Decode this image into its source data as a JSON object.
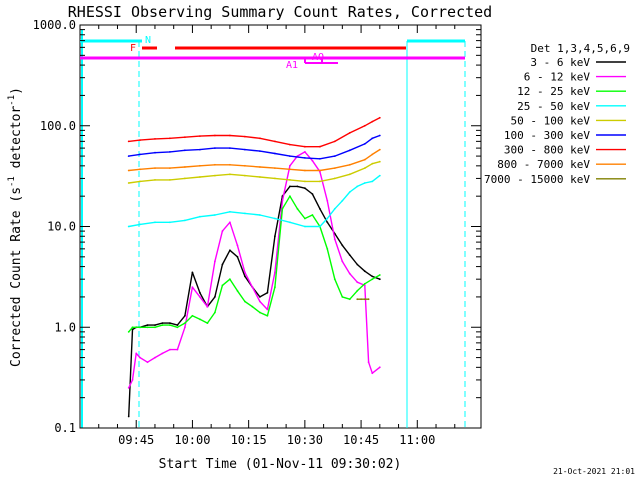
{
  "chart_data": {
    "type": "line",
    "title": "RHESSI Observing Summary Count Rates, Corrected",
    "xlabel": "Start Time (01-Nov-11 09:30:02)",
    "ylabel": "Corrected Count Rate (s⁻¹ detector⁻¹)",
    "ylabel_main": "Corrected Count Rate (s",
    "ylabel_sup1": "-1",
    "ylabel_mid": " detector",
    "ylabel_sup2": "-1",
    "ylabel_end": ")",
    "yscale": "log",
    "ylim": [
      0.1,
      1000
    ],
    "xlim_minutes": [
      0,
      107
    ],
    "x_ticks": [
      {
        "minute": 15,
        "label": "09:45"
      },
      {
        "minute": 30,
        "label": "10:00"
      },
      {
        "minute": 45,
        "label": "10:15"
      },
      {
        "minute": 60,
        "label": "10:30"
      },
      {
        "minute": 75,
        "label": "10:45"
      },
      {
        "minute": 90,
        "label": "11:00"
      }
    ],
    "y_ticks": [
      {
        "value": 0.1,
        "label": "0.1"
      },
      {
        "value": 1,
        "label": "1.0"
      },
      {
        "value": 10,
        "label": "10.0"
      },
      {
        "value": 100,
        "label": "100.0"
      },
      {
        "value": 1000,
        "label": "1000.0"
      }
    ],
    "legend_title": "Det 1,3,4,5,6,9",
    "legend_position": "right",
    "timestamp": "21-Oct-2021 21:01",
    "series": [
      {
        "name": "3 - 6 keV",
        "color": "#000000",
        "x": [
          13,
          14,
          15,
          16,
          18,
          20,
          22,
          24,
          26,
          28,
          30,
          32,
          34,
          36,
          38,
          40,
          42,
          44,
          46,
          48,
          50,
          52,
          54,
          56,
          58,
          60,
          62,
          64,
          66,
          68,
          70,
          72,
          74,
          76,
          78,
          80
        ],
        "y": [
          0.13,
          0.95,
          1.0,
          1.0,
          1.05,
          1.05,
          1.1,
          1.1,
          1.05,
          1.3,
          3.5,
          2.2,
          1.6,
          2.0,
          4.2,
          5.8,
          5.0,
          3.2,
          2.5,
          2.0,
          2.2,
          8.0,
          20,
          25,
          25,
          24,
          21,
          15,
          11,
          8.5,
          6.5,
          5.2,
          4.2,
          3.6,
          3.2,
          3.0
        ]
      },
      {
        "name": "6 - 12 keV",
        "color": "#ff00ff",
        "x": [
          13,
          14,
          15,
          16,
          18,
          20,
          22,
          24,
          26,
          28,
          30,
          32,
          34,
          36,
          38,
          40,
          42,
          44,
          46,
          48,
          50,
          52,
          54,
          56,
          58,
          60,
          62,
          64,
          66,
          68,
          70,
          72,
          74,
          76,
          77,
          78,
          80
        ],
        "y": [
          0.25,
          0.3,
          0.55,
          0.5,
          0.45,
          0.5,
          0.55,
          0.6,
          0.6,
          1.0,
          2.5,
          2.0,
          1.6,
          4.5,
          9.0,
          11.0,
          6.5,
          3.5,
          2.5,
          1.8,
          1.5,
          3.5,
          18,
          40,
          50,
          55,
          45,
          35,
          18,
          7.5,
          4.5,
          3.4,
          2.8,
          2.6,
          0.45,
          0.35,
          0.4
        ]
      },
      {
        "name": "12 - 25 keV",
        "color": "#00ff00",
        "x": [
          13,
          14,
          16,
          18,
          20,
          22,
          24,
          26,
          28,
          30,
          32,
          34,
          36,
          38,
          40,
          42,
          44,
          46,
          48,
          50,
          52,
          54,
          56,
          58,
          60,
          62,
          64,
          66,
          68,
          70,
          72,
          74,
          76,
          78,
          80
        ],
        "y": [
          0.9,
          1.0,
          1.0,
          1.0,
          1.0,
          1.05,
          1.05,
          1.0,
          1.1,
          1.3,
          1.2,
          1.1,
          1.4,
          2.6,
          3.0,
          2.3,
          1.8,
          1.6,
          1.4,
          1.3,
          2.5,
          15,
          20,
          15,
          12,
          13,
          10,
          6.0,
          3.0,
          2.0,
          1.9,
          2.3,
          2.7,
          3.0,
          3.3
        ]
      },
      {
        "name": "25 - 50 keV",
        "color": "#00ffff",
        "x": [
          13,
          16,
          20,
          24,
          28,
          32,
          36,
          40,
          44,
          48,
          52,
          56,
          60,
          64,
          66,
          68,
          70,
          72,
          74,
          76,
          78,
          80
        ],
        "y": [
          10.0,
          10.5,
          11.0,
          11.0,
          11.5,
          12.5,
          13.0,
          14.0,
          13.5,
          13.0,
          12.0,
          11.0,
          10.0,
          10.0,
          12.0,
          15.0,
          18.0,
          22.0,
          25.0,
          27.0,
          28.0,
          32.0
        ]
      },
      {
        "name": "50 - 100 keV",
        "color": "#cccc00",
        "x": [
          13,
          16,
          20,
          24,
          28,
          32,
          36,
          40,
          44,
          48,
          52,
          56,
          60,
          64,
          68,
          72,
          76,
          78,
          80
        ],
        "y": [
          27,
          28,
          29,
          29,
          30,
          31,
          32,
          33,
          32,
          31,
          30,
          29,
          28,
          28,
          30,
          33,
          38,
          42,
          44
        ]
      },
      {
        "name": "100 - 300 keV",
        "color": "#0000ff",
        "x": [
          13,
          16,
          20,
          24,
          28,
          32,
          36,
          40,
          44,
          48,
          52,
          56,
          60,
          64,
          68,
          72,
          76,
          78,
          80
        ],
        "y": [
          50,
          52,
          54,
          55,
          57,
          58,
          60,
          60,
          58,
          56,
          53,
          50,
          48,
          47,
          50,
          57,
          66,
          75,
          80
        ]
      },
      {
        "name": "300 - 800 keV",
        "color": "#ff0000",
        "x": [
          13,
          16,
          20,
          24,
          28,
          32,
          36,
          40,
          44,
          48,
          52,
          56,
          60,
          64,
          68,
          72,
          76,
          78,
          80
        ],
        "y": [
          70,
          72,
          74,
          75,
          77,
          79,
          80,
          80,
          78,
          75,
          70,
          65,
          62,
          62,
          70,
          85,
          100,
          110,
          120
        ]
      },
      {
        "name": "800 - 7000 keV",
        "color": "#ff8000",
        "x": [
          13,
          16,
          20,
          24,
          28,
          32,
          36,
          40,
          44,
          48,
          52,
          56,
          60,
          64,
          68,
          72,
          76,
          78,
          80
        ],
        "y": [
          36,
          37,
          38,
          38,
          39,
          40,
          41,
          41,
          40,
          39,
          38,
          37,
          36,
          36,
          38,
          41,
          46,
          52,
          58
        ]
      },
      {
        "name": "7000 - 15000 keV",
        "color": "#808000",
        "x": [
          74,
          75,
          76,
          77
        ],
        "y": [
          1.9,
          1.9,
          1.9,
          1.9
        ]
      }
    ],
    "annotations": {
      "N": "N",
      "F": "F",
      "AQ": "AQ",
      "A1": "A1"
    }
  }
}
